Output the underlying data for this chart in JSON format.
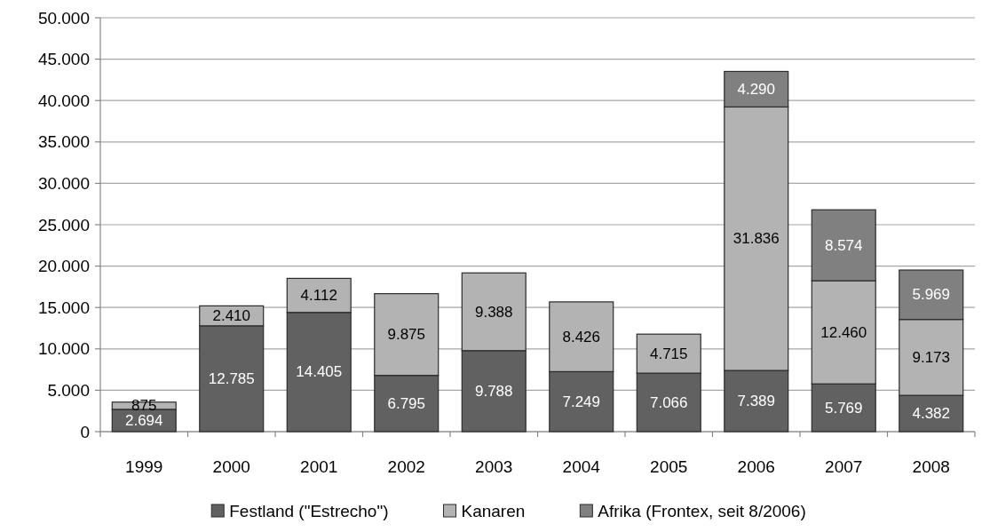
{
  "chart_data": {
    "type": "bar",
    "stacked": true,
    "categories": [
      "1999",
      "2000",
      "2001",
      "2002",
      "2003",
      "2004",
      "2005",
      "2006",
      "2007",
      "2008"
    ],
    "series": [
      {
        "name": "Festland (\"Estrecho\")",
        "color": "#616161",
        "values": [
          2694,
          12785,
          14405,
          6795,
          9788,
          7249,
          7066,
          7389,
          5769,
          4382
        ],
        "value_labels": [
          "2.694",
          "12.785",
          "14.405",
          "6.795",
          "9.788",
          "7.249",
          "7.066",
          "7.389",
          "5.769",
          "4.382"
        ]
      },
      {
        "name": "Kanaren",
        "color": "#b3b3b3",
        "values": [
          875,
          2410,
          4112,
          9875,
          9388,
          8426,
          4715,
          31836,
          12460,
          9173
        ],
        "value_labels": [
          "875",
          "2.410",
          "4.112",
          "9.875",
          "9.388",
          "8.426",
          "4.715",
          "31.836",
          "12.460",
          "9.173"
        ]
      },
      {
        "name": "Afrika (Frontex, seit 8/2006)",
        "color": "#808080",
        "values": [
          null,
          null,
          null,
          null,
          null,
          null,
          null,
          4290,
          8574,
          5969
        ],
        "value_labels": [
          null,
          null,
          null,
          null,
          null,
          null,
          null,
          "4.290",
          "8.574",
          "5.969"
        ]
      }
    ],
    "ylim": [
      0,
      50000
    ],
    "yticks": [
      0,
      {
        "value": 5000,
        "label": "5.000"
      },
      {
        "value": 10000,
        "label": "10.000"
      },
      {
        "value": 15000,
        "label": "15.000"
      },
      {
        "value": 20000,
        "label": "20.000"
      },
      {
        "value": 25000,
        "label": "25.000"
      },
      {
        "value": 30000,
        "label": "30.000"
      },
      {
        "value": 35000,
        "label": "35.000"
      },
      {
        "value": 40000,
        "label": "40.000"
      },
      {
        "value": 45000,
        "label": "45.000"
      },
      {
        "value": 50000,
        "label": "50.000"
      }
    ],
    "grid": "y",
    "legend": "bottom"
  }
}
